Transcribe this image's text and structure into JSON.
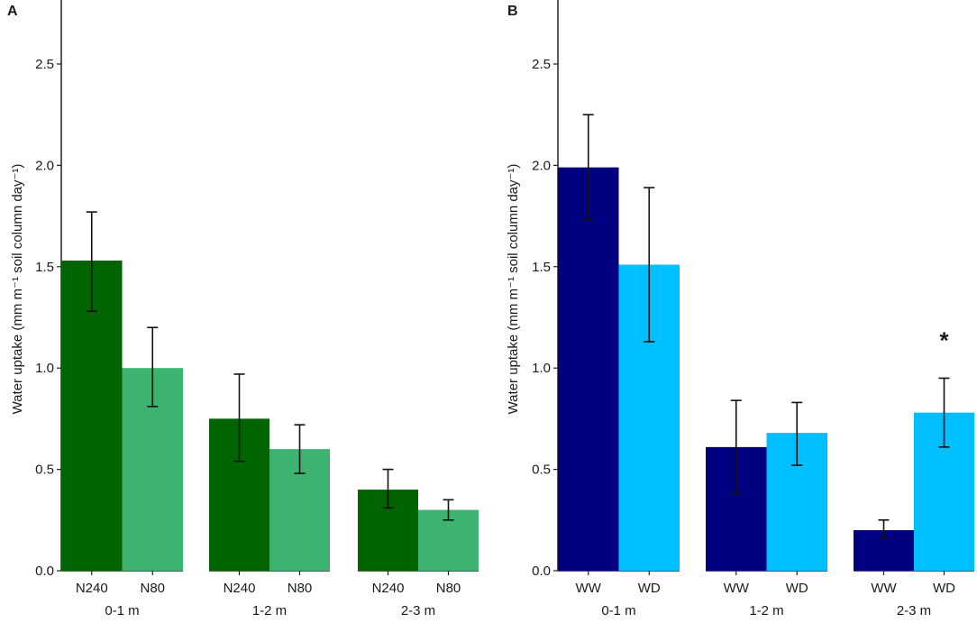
{
  "figure": {
    "shared_ylabel": "Water uptake (mm m⁻¹ soil column day⁻¹)"
  },
  "chart_data": [
    {
      "type": "bar",
      "panel_label": "A",
      "ylabel": "Water uptake (mm m⁻¹ soil column day⁻¹)",
      "ylim": [
        0,
        2.8
      ],
      "yticks": [
        "0.0",
        "0.5",
        "1.0",
        "1.5",
        "2.0",
        "2.5"
      ],
      "grid": false,
      "groups": [
        {
          "label": "0-1 m",
          "bars": [
            {
              "category": "N240",
              "value": 1.53,
              "err_low": 1.28,
              "err_high": 1.77,
              "sig": "",
              "color": "#006400"
            },
            {
              "category": "N80",
              "value": 1.0,
              "err_low": 0.81,
              "err_high": 1.2,
              "sig": "",
              "color": "#3cb371"
            }
          ]
        },
        {
          "label": "1-2 m",
          "bars": [
            {
              "category": "N240",
              "value": 0.75,
              "err_low": 0.54,
              "err_high": 0.97,
              "sig": "",
              "color": "#006400"
            },
            {
              "category": "N80",
              "value": 0.6,
              "err_low": 0.48,
              "err_high": 0.72,
              "sig": "",
              "color": "#3cb371"
            }
          ]
        },
        {
          "label": "2-3 m",
          "bars": [
            {
              "category": "N240",
              "value": 0.4,
              "err_low": 0.31,
              "err_high": 0.5,
              "sig": "",
              "color": "#006400"
            },
            {
              "category": "N80",
              "value": 0.3,
              "err_low": 0.25,
              "err_high": 0.35,
              "sig": "",
              "color": "#3cb371"
            }
          ]
        }
      ]
    },
    {
      "type": "bar",
      "panel_label": "B",
      "ylabel": "Water uptake (mm m⁻¹ soil column day⁻¹)",
      "ylim": [
        0,
        2.8
      ],
      "yticks": [
        "0.0",
        "0.5",
        "1.0",
        "1.5",
        "2.0",
        "2.5"
      ],
      "grid": false,
      "groups": [
        {
          "label": "0-1 m",
          "bars": [
            {
              "category": "WW",
              "value": 1.99,
              "err_low": 1.73,
              "err_high": 2.25,
              "sig": "",
              "color": "#000080"
            },
            {
              "category": "WD",
              "value": 1.51,
              "err_low": 1.13,
              "err_high": 1.89,
              "sig": "",
              "color": "#00bfff"
            }
          ]
        },
        {
          "label": "1-2 m",
          "bars": [
            {
              "category": "WW",
              "value": 0.61,
              "err_low": 0.38,
              "err_high": 0.84,
              "sig": "",
              "color": "#000080"
            },
            {
              "category": "WD",
              "value": 0.68,
              "err_low": 0.52,
              "err_high": 0.83,
              "sig": "",
              "color": "#00bfff"
            }
          ]
        },
        {
          "label": "2-3 m",
          "bars": [
            {
              "category": "WW",
              "value": 0.2,
              "err_low": 0.16,
              "err_high": 0.25,
              "sig": "",
              "color": "#000080"
            },
            {
              "category": "WD",
              "value": 0.78,
              "err_low": 0.61,
              "err_high": 0.95,
              "sig": "*",
              "color": "#00bfff"
            }
          ]
        }
      ]
    }
  ]
}
